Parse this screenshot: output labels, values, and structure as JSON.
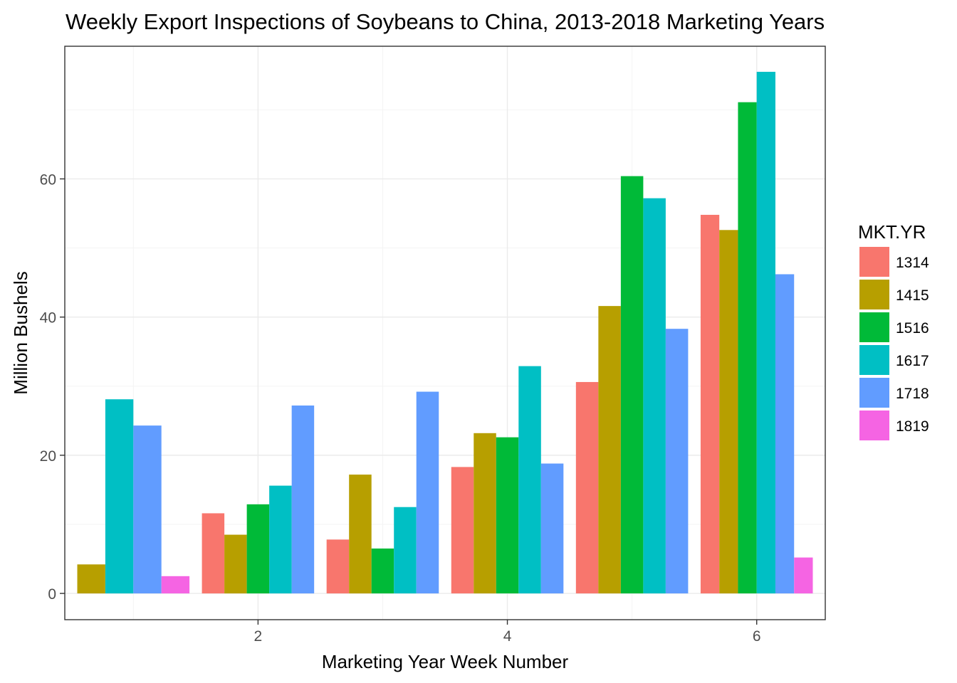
{
  "chart_data": {
    "type": "bar",
    "title": "Weekly Export Inspections of Soybeans to China, 2013-2018 Marketing Years",
    "xlabel": "Marketing Year Week Number",
    "ylabel": "Million Bushels",
    "legend_title": "MKT.YR",
    "legend_position": "right",
    "grid": true,
    "xlim": [
      0.45,
      6.55
    ],
    "ylim": [
      -3.8,
      79.2
    ],
    "x_ticks": [
      2,
      4,
      6
    ],
    "y_ticks": [
      0,
      20,
      40,
      60
    ],
    "categories": [
      1,
      2,
      3,
      4,
      5,
      6
    ],
    "series": [
      {
        "name": "1314",
        "color": "#F8766D",
        "values": [
          null,
          11.6,
          7.8,
          18.3,
          30.6,
          54.8
        ]
      },
      {
        "name": "1415",
        "color": "#B79F00",
        "values": [
          4.2,
          8.5,
          17.2,
          23.2,
          41.6,
          52.6
        ]
      },
      {
        "name": "1516",
        "color": "#00BA38",
        "values": [
          null,
          12.9,
          6.5,
          22.6,
          60.4,
          71.1
        ]
      },
      {
        "name": "1617",
        "color": "#00BFC4",
        "values": [
          28.1,
          15.6,
          12.5,
          32.9,
          57.2,
          75.5
        ]
      },
      {
        "name": "1718",
        "color": "#619CFF",
        "values": [
          24.3,
          27.2,
          29.2,
          18.8,
          38.3,
          46.2
        ]
      },
      {
        "name": "1819",
        "color": "#F564E3",
        "values": [
          2.5,
          null,
          null,
          null,
          null,
          5.2
        ]
      }
    ]
  }
}
